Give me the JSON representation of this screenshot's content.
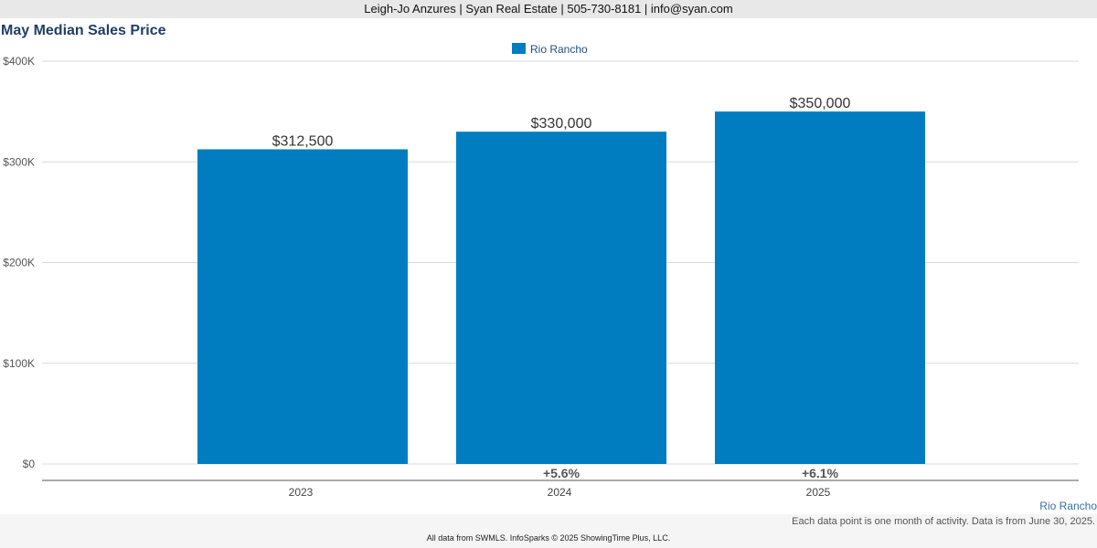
{
  "header": {
    "contact": "Leigh-Jo Anzures | Syan Real Estate | 505-730-8181 | info@syan.com"
  },
  "chart_data": {
    "type": "bar",
    "title": "May Median Sales Price",
    "categories": [
      "2023",
      "2024",
      "2025"
    ],
    "series": [
      {
        "name": "Rio Rancho",
        "values": [
          312500,
          330000,
          350000
        ],
        "color": "#007dc0"
      }
    ],
    "value_labels": [
      "$312,500",
      "$330,000",
      "$350,000"
    ],
    "change_labels": [
      "",
      "+5.6%",
      "+6.1%"
    ],
    "ylim": [
      0,
      400000
    ],
    "yticks": [
      0,
      100000,
      200000,
      300000,
      400000
    ],
    "ytick_labels": [
      "$0",
      "$100K",
      "$200K",
      "$300K",
      "$400K"
    ],
    "grid": true,
    "legend_position": "top-center"
  },
  "footer": {
    "region": "Rio Rancho",
    "note": "Each data point is one month of activity. Data is from June 30, 2025.",
    "credits": "All data from SWMLS. InfoSparks © 2025 ShowingTime Plus, LLC."
  }
}
